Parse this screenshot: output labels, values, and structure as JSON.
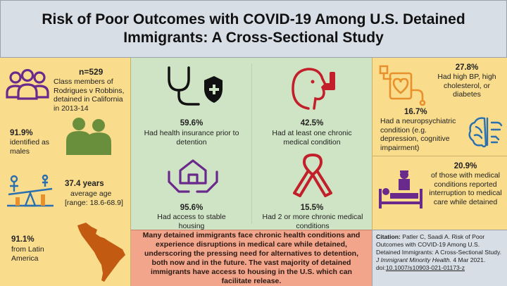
{
  "title": "Risk of Poor Outcomes with COVID-19 Among U.S. Detained Immigrants: A Cross-Sectional Study",
  "left": {
    "n": "n=529",
    "class_desc": "Class members of Rodrigues v Robbins, detained in California in 2013-14",
    "males_pct": "91.9%",
    "males_label": "identified as males",
    "age_value": "37.4 years",
    "age_label": "average age",
    "age_range": "[range: 18.6-68.9]",
    "latin_pct": "91.1%",
    "latin_label": "from Latin America"
  },
  "middle": {
    "insurance_pct": "59.6%",
    "insurance_label": "Had health insurance prior to detention",
    "chronic_pct": "42.5%",
    "chronic_label": "Had at least one chronic medical condition",
    "housing_pct": "95.6%",
    "housing_label": "Had access to stable housing",
    "multi_pct": "15.5%",
    "multi_label": "Had 2 or more chronic medical conditions"
  },
  "right": {
    "bp_pct": "27.8%",
    "bp_label": "Had high BP, high cholesterol, or diabetes",
    "neuro_pct": "16.7%",
    "neuro_label": "Had a neuropsychiatric condition (e.g. depression, cognitive impairment)",
    "interrupt_pct": "20.9%",
    "interrupt_label": "of those with medical conditions reported interruption to medical care while detained"
  },
  "summary": "Many detained immigrants face chronic health conditions and experience disruptions in medical care while detained, underscoring the pressing need for alternatives to detention, both now and in the future. The vast majority of detained immigrants have access to housing in the U.S. which can facilitate release.",
  "citation": {
    "label": "Citation:",
    "authors": "Patler C, Saadi A. Risk of Poor Outcomes with COVID-19 Among U.S. Detained Immigrants: A Cross-Sectional Study.",
    "journal": "J Immigrant Minority Health.",
    "date": "4 Mar 2021. doi:",
    "doi": "10.1007/s10903-021-01173-z"
  },
  "colors": {
    "yellow_panel": "#f9dc8c",
    "green_panel": "#cfe4c4",
    "salmon_panel": "#f2a58a",
    "grey_panel": "#d8dee6",
    "purple_icon": "#6a2a8c",
    "green_icon": "#6a8f3c",
    "red_icon": "#c21f2a",
    "orange_icon": "#e8912c",
    "blue_icon": "#2a6fb0",
    "map_brown": "#c25a12"
  },
  "icons": [
    "people-icon",
    "men-silhouette-icon",
    "seesaw-age-icon",
    "latin-america-map-icon",
    "stethoscope-shield-icon",
    "person-inhaler-icon",
    "hands-house-icon",
    "awareness-ribbon-icon",
    "heart-monitor-icon",
    "brain-icon",
    "hospital-bed-icon"
  ]
}
